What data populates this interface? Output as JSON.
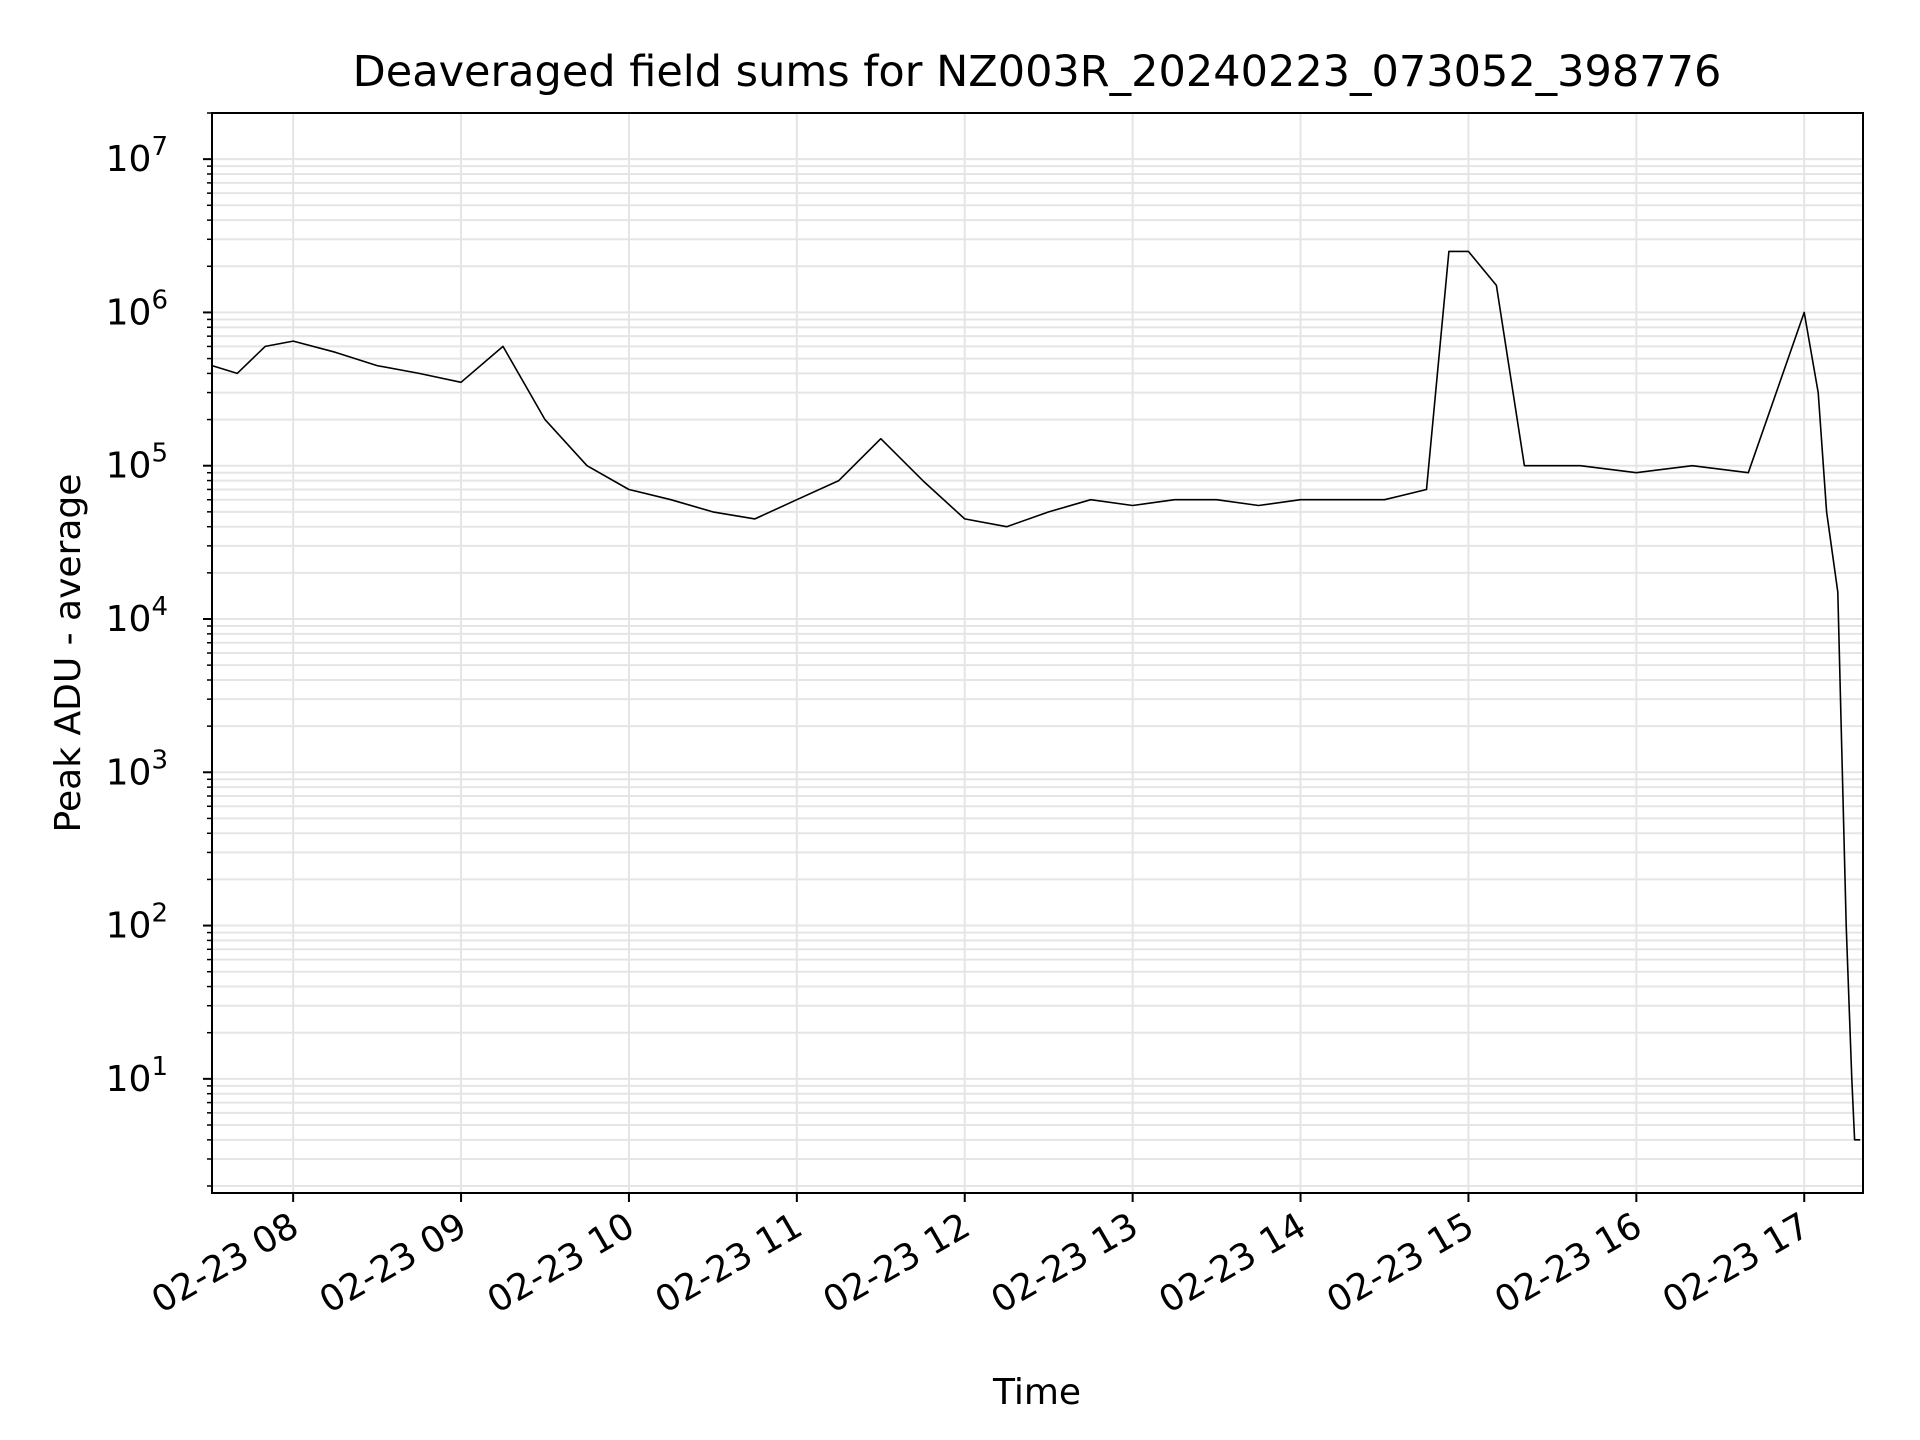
{
  "chart_data": {
    "type": "line",
    "title": "Deaveraged field sums for NZ003R_20240223_073052_398776",
    "xlabel": "Time",
    "ylabel": "Peak ADU - average",
    "y_scale": "log",
    "ylim": [
      1.8,
      20000000
    ],
    "xlim": [
      "02-23 07:31",
      "02-23 17:21"
    ],
    "grid": true,
    "grid_minor": true,
    "x_tick_labels": [
      "02-23 08",
      "02-23 09",
      "02-23 10",
      "02-23 11",
      "02-23 12",
      "02-23 13",
      "02-23 14",
      "02-23 15",
      "02-23 16",
      "02-23 17"
    ],
    "x_tick_times": [
      "02-23 08:00",
      "02-23 09:00",
      "02-23 10:00",
      "02-23 11:00",
      "02-23 12:00",
      "02-23 13:00",
      "02-23 14:00",
      "02-23 15:00",
      "02-23 16:00",
      "02-23 17:00"
    ],
    "y_tick_values": [
      10,
      100,
      1000,
      10000,
      100000,
      1000000,
      10000000
    ],
    "y_tick_bases": [
      "10",
      "10",
      "10",
      "10",
      "10",
      "10",
      "10"
    ],
    "y_tick_exponents": [
      "1",
      "2",
      "3",
      "4",
      "5",
      "6",
      "7"
    ],
    "line_color": "#000000",
    "grid_color": "#e5e5e5",
    "series": [
      {
        "x": [
          "02-23 07:31",
          "02-23 07:40",
          "02-23 07:50",
          "02-23 08:00",
          "02-23 08:15",
          "02-23 08:30",
          "02-23 08:45",
          "02-23 09:00",
          "02-23 09:15",
          "02-23 09:30",
          "02-23 09:45",
          "02-23 10:00",
          "02-23 10:15",
          "02-23 10:30",
          "02-23 10:45",
          "02-23 11:00",
          "02-23 11:15",
          "02-23 11:30",
          "02-23 11:45",
          "02-23 12:00",
          "02-23 12:15",
          "02-23 12:30",
          "02-23 12:45",
          "02-23 13:00",
          "02-23 13:15",
          "02-23 13:30",
          "02-23 13:45",
          "02-23 14:00",
          "02-23 14:15",
          "02-23 14:30",
          "02-23 14:45",
          "02-23 14:53",
          "02-23 15:00",
          "02-23 15:10",
          "02-23 15:20",
          "02-23 15:40",
          "02-23 16:00",
          "02-23 16:20",
          "02-23 16:40",
          "02-23 17:00",
          "02-23 17:05",
          "02-23 17:08",
          "02-23 17:12",
          "02-23 17:15",
          "02-23 17:17",
          "02-23 17:18",
          "02-23 17:20"
        ],
        "y": [
          450000,
          400000,
          600000,
          650000,
          550000,
          450000,
          400000,
          350000,
          600000,
          200000,
          100000,
          70000,
          60000,
          50000,
          45000,
          60000,
          80000,
          150000,
          80000,
          45000,
          40000,
          50000,
          60000,
          55000,
          60000,
          60000,
          55000,
          60000,
          60000,
          60000,
          70000,
          2500000,
          2500000,
          1500000,
          100000,
          100000,
          90000,
          100000,
          90000,
          1000000,
          300000,
          50000,
          15000,
          100,
          10,
          4,
          4
        ]
      }
    ]
  }
}
